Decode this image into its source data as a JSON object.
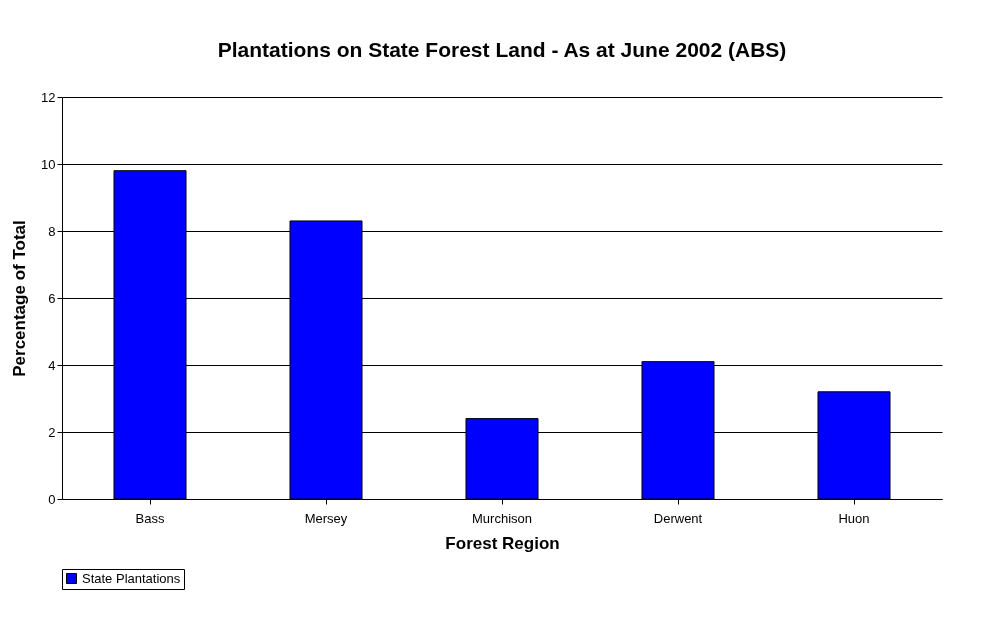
{
  "chart_data": {
    "type": "bar",
    "title": "Plantations on State Forest Land - As at June 2002 (ABS)",
    "xlabel": "Forest Region",
    "ylabel": "Percentage of Total",
    "categories": [
      "Bass",
      "Mersey",
      "Murchison",
      "Derwent",
      "Huon"
    ],
    "series": [
      {
        "name": "State Plantations",
        "color": "#0000ff",
        "values": [
          9.8,
          8.3,
          2.4,
          4.1,
          3.2
        ]
      }
    ],
    "ylim": [
      0,
      12
    ],
    "yticks": [
      0,
      2,
      4,
      6,
      8,
      10,
      12
    ],
    "grid": "y",
    "legend": "bottom"
  }
}
